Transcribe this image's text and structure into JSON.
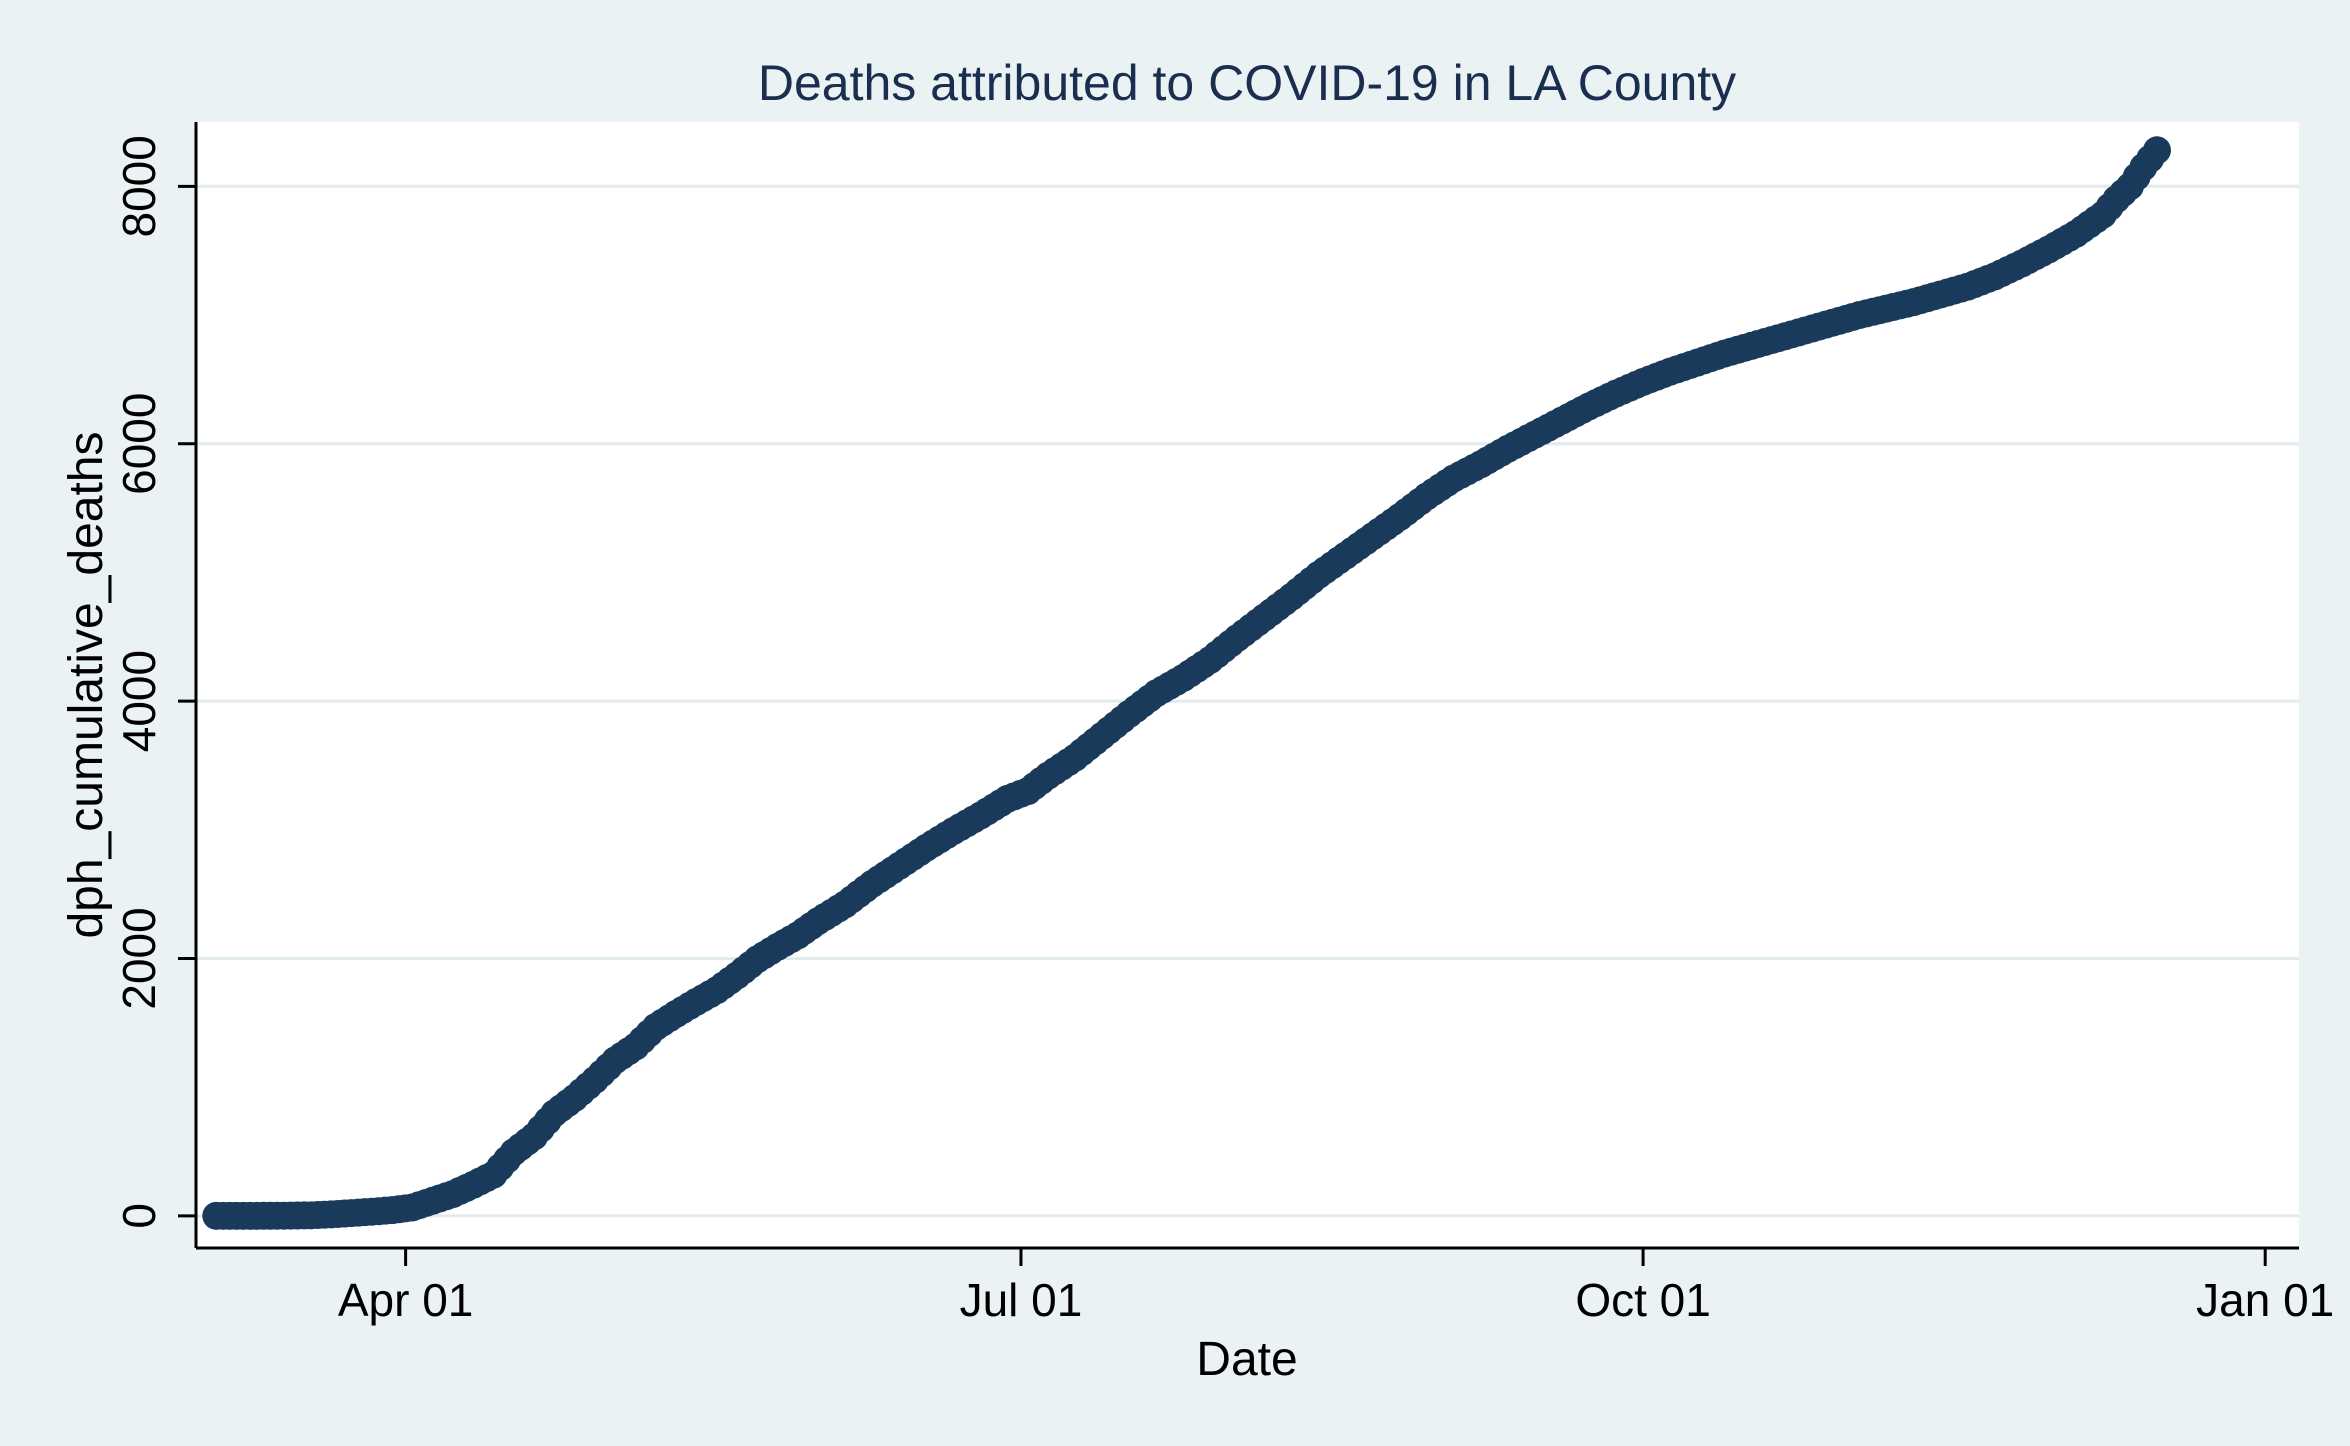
{
  "chart_data": {
    "type": "scatter",
    "title": "Deaths attributed to COVID-19 in LA County",
    "xlabel": "Date",
    "ylabel": "dph_cumulative_deaths",
    "x_ticks": [
      {
        "date": "2020-04-01",
        "label": "Apr 01"
      },
      {
        "date": "2020-07-01",
        "label": "Jul 01"
      },
      {
        "date": "2020-10-01",
        "label": "Oct 01"
      },
      {
        "date": "2021-01-01",
        "label": "Jan 01"
      }
    ],
    "y_ticks": [
      0,
      2000,
      4000,
      6000,
      8000
    ],
    "xlim": [
      "2020-03-01",
      "2021-01-06"
    ],
    "ylim": [
      -250,
      8500
    ],
    "grid": "horizontal",
    "marker_color": "#1a3a5c",
    "series": [
      {
        "points": [
          [
            "2020-03-04",
            0
          ],
          [
            "2020-03-10",
            0
          ],
          [
            "2020-03-14",
            1
          ],
          [
            "2020-03-18",
            4
          ],
          [
            "2020-03-21",
            11
          ],
          [
            "2020-03-24",
            21
          ],
          [
            "2020-03-27",
            32
          ],
          [
            "2020-03-30",
            44
          ],
          [
            "2020-04-02",
            65
          ],
          [
            "2020-04-05",
            117
          ],
          [
            "2020-04-08",
            169
          ],
          [
            "2020-04-11",
            241
          ],
          [
            "2020-04-14",
            320
          ],
          [
            "2020-04-17",
            495
          ],
          [
            "2020-04-20",
            617
          ],
          [
            "2020-04-23",
            797
          ],
          [
            "2020-04-26",
            916
          ],
          [
            "2020-04-29",
            1056
          ],
          [
            "2020-05-02",
            1209
          ],
          [
            "2020-05-05",
            1315
          ],
          [
            "2020-05-08",
            1468
          ],
          [
            "2020-05-11",
            1569
          ],
          [
            "2020-05-14",
            1663
          ],
          [
            "2020-05-17",
            1752
          ],
          [
            "2020-05-20",
            1867
          ],
          [
            "2020-05-23",
            1993
          ],
          [
            "2020-05-26",
            2090
          ],
          [
            "2020-05-29",
            2179
          ],
          [
            "2020-06-01",
            2290
          ],
          [
            "2020-06-05",
            2420
          ],
          [
            "2020-06-09",
            2580
          ],
          [
            "2020-06-13",
            2720
          ],
          [
            "2020-06-17",
            2860
          ],
          [
            "2020-06-21",
            2990
          ],
          [
            "2020-06-25",
            3110
          ],
          [
            "2020-06-29",
            3240
          ],
          [
            "2020-07-02",
            3300
          ],
          [
            "2020-07-05",
            3420
          ],
          [
            "2020-07-09",
            3560
          ],
          [
            "2020-07-13",
            3730
          ],
          [
            "2020-07-17",
            3900
          ],
          [
            "2020-07-21",
            4060
          ],
          [
            "2020-07-25",
            4180
          ],
          [
            "2020-07-29",
            4320
          ],
          [
            "2020-08-02",
            4490
          ],
          [
            "2020-08-06",
            4650
          ],
          [
            "2020-08-10",
            4810
          ],
          [
            "2020-08-14",
            4980
          ],
          [
            "2020-08-18",
            5130
          ],
          [
            "2020-08-22",
            5280
          ],
          [
            "2020-08-26",
            5430
          ],
          [
            "2020-08-30",
            5590
          ],
          [
            "2020-09-03",
            5730
          ],
          [
            "2020-09-07",
            5840
          ],
          [
            "2020-09-11",
            5960
          ],
          [
            "2020-09-15",
            6070
          ],
          [
            "2020-09-19",
            6180
          ],
          [
            "2020-09-23",
            6290
          ],
          [
            "2020-09-27",
            6390
          ],
          [
            "2020-10-01",
            6480
          ],
          [
            "2020-10-05",
            6560
          ],
          [
            "2020-10-09",
            6630
          ],
          [
            "2020-10-13",
            6700
          ],
          [
            "2020-10-17",
            6760
          ],
          [
            "2020-10-21",
            6820
          ],
          [
            "2020-10-25",
            6880
          ],
          [
            "2020-10-29",
            6940
          ],
          [
            "2020-11-02",
            7000
          ],
          [
            "2020-11-06",
            7050
          ],
          [
            "2020-11-10",
            7100
          ],
          [
            "2020-11-14",
            7160
          ],
          [
            "2020-11-18",
            7220
          ],
          [
            "2020-11-22",
            7300
          ],
          [
            "2020-11-26",
            7400
          ],
          [
            "2020-11-30",
            7510
          ],
          [
            "2020-12-04",
            7630
          ],
          [
            "2020-12-08",
            7780
          ],
          [
            "2020-12-10",
            7900
          ],
          [
            "2020-12-12",
            8000
          ],
          [
            "2020-12-14",
            8150
          ],
          [
            "2020-12-16",
            8280
          ]
        ]
      }
    ]
  }
}
